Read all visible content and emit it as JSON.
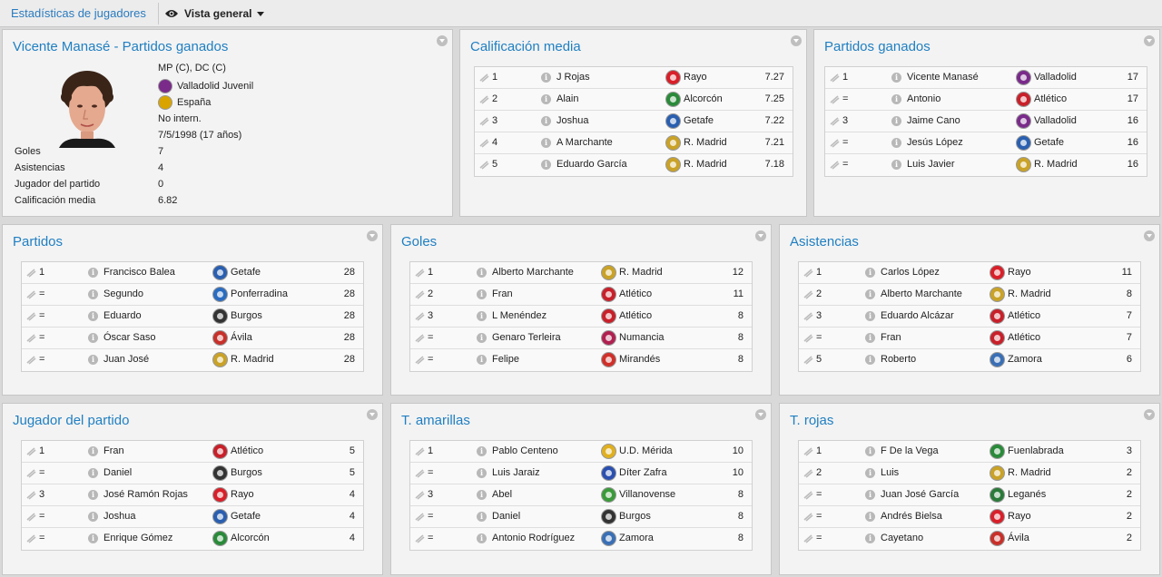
{
  "topbar": {
    "link": "Estadísticas de jugadores",
    "view_label": "Vista general"
  },
  "profile": {
    "title": "Vicente Manasé - Partidos ganados",
    "position": "MP (C), DC (C)",
    "club": "Valladolid Juvenil",
    "nation": "España",
    "intl": "No intern.",
    "dob": "7/5/1998 (17 años)",
    "stats": [
      {
        "label": "Goles",
        "value": "7"
      },
      {
        "label": "Asistencias",
        "value": "4"
      },
      {
        "label": "Jugador del partido",
        "value": "0"
      },
      {
        "label": "Calificación media",
        "value": "6.82"
      }
    ],
    "club_color": "#7a2b8a",
    "nation_color": "#d9a400"
  },
  "panels": [
    {
      "title": "Calificación media",
      "rows": [
        {
          "rank": "1",
          "name": "J Rojas",
          "club": "Rayo",
          "value": "7.27",
          "color": "#d8202a"
        },
        {
          "rank": "2",
          "name": "Alain",
          "club": "Alcorcón",
          "value": "7.25",
          "color": "#2a8a3a"
        },
        {
          "rank": "3",
          "name": "Joshua",
          "club": "Getafe",
          "value": "7.22",
          "color": "#2a5fb0"
        },
        {
          "rank": "4",
          "name": "A Marchante",
          "club": "R. Madrid",
          "value": "7.21",
          "color": "#c9a227"
        },
        {
          "rank": "5",
          "name": "Eduardo García",
          "club": "R. Madrid",
          "value": "7.18",
          "color": "#c9a227"
        }
      ]
    },
    {
      "title": "Partidos ganados",
      "rows": [
        {
          "rank": "1",
          "name": "Vicente Manasé",
          "club": "Valladolid",
          "value": "17",
          "color": "#7a2b8a"
        },
        {
          "rank": "=",
          "name": "Antonio",
          "club": "Atlético",
          "value": "17",
          "color": "#c8202a"
        },
        {
          "rank": "3",
          "name": "Jaime Cano",
          "club": "Valladolid",
          "value": "16",
          "color": "#7a2b8a"
        },
        {
          "rank": "=",
          "name": "Jesús López",
          "club": "Getafe",
          "value": "16",
          "color": "#2a5fb0"
        },
        {
          "rank": "=",
          "name": "Luis Javier",
          "club": "R. Madrid",
          "value": "16",
          "color": "#c9a227"
        }
      ]
    },
    {
      "title": "Partidos",
      "rows": [
        {
          "rank": "1",
          "name": "Francisco Balea",
          "club": "Getafe",
          "value": "28",
          "color": "#2a5fb0"
        },
        {
          "rank": "=",
          "name": "Segundo",
          "club": "Ponferradina",
          "value": "28",
          "color": "#2a6cc0"
        },
        {
          "rank": "=",
          "name": "Eduardo",
          "club": "Burgos",
          "value": "28",
          "color": "#333333"
        },
        {
          "rank": "=",
          "name": "Óscar Saso",
          "club": "Ávila",
          "value": "28",
          "color": "#c8302a"
        },
        {
          "rank": "=",
          "name": "Juan José",
          "club": "R. Madrid",
          "value": "28",
          "color": "#c9a227"
        }
      ]
    },
    {
      "title": "Goles",
      "rows": [
        {
          "rank": "1",
          "name": "Alberto Marchante",
          "club": "R. Madrid",
          "value": "12",
          "color": "#c9a227"
        },
        {
          "rank": "2",
          "name": "Fran",
          "club": "Atlético",
          "value": "11",
          "color": "#c8202a"
        },
        {
          "rank": "3",
          "name": "L Menéndez",
          "club": "Atlético",
          "value": "8",
          "color": "#c8202a"
        },
        {
          "rank": "=",
          "name": "Genaro Terleira",
          "club": "Numancia",
          "value": "8",
          "color": "#b02050"
        },
        {
          "rank": "=",
          "name": "Felipe",
          "club": "Mirandés",
          "value": "8",
          "color": "#d0302a"
        }
      ]
    },
    {
      "title": "Asistencias",
      "rows": [
        {
          "rank": "1",
          "name": "Carlos López",
          "club": "Rayo",
          "value": "11",
          "color": "#d8202a"
        },
        {
          "rank": "2",
          "name": "Alberto Marchante",
          "club": "R. Madrid",
          "value": "8",
          "color": "#c9a227"
        },
        {
          "rank": "3",
          "name": "Eduardo Alcázar",
          "club": "Atlético",
          "value": "7",
          "color": "#c8202a"
        },
        {
          "rank": "=",
          "name": "Fran",
          "club": "Atlético",
          "value": "7",
          "color": "#c8202a"
        },
        {
          "rank": "5",
          "name": "Roberto",
          "club": "Zamora",
          "value": "6",
          "color": "#3a6fb5"
        }
      ]
    },
    {
      "title": "Jugador del partido",
      "rows": [
        {
          "rank": "1",
          "name": "Fran",
          "club": "Atlético",
          "value": "5",
          "color": "#c8202a"
        },
        {
          "rank": "=",
          "name": "Daniel",
          "club": "Burgos",
          "value": "5",
          "color": "#333333"
        },
        {
          "rank": "3",
          "name": "José Ramón Rojas",
          "club": "Rayo",
          "value": "4",
          "color": "#d8202a"
        },
        {
          "rank": "=",
          "name": "Joshua",
          "club": "Getafe",
          "value": "4",
          "color": "#2a5fb0"
        },
        {
          "rank": "=",
          "name": "Enrique Gómez",
          "club": "Alcorcón",
          "value": "4",
          "color": "#2a8a3a"
        }
      ]
    },
    {
      "title": "T. amarillas",
      "rows": [
        {
          "rank": "1",
          "name": "Pablo Centeno",
          "club": "U.D. Mérida",
          "value": "10",
          "color": "#e0b020"
        },
        {
          "rank": "=",
          "name": "Luis Jaraiz",
          "club": "Díter Zafra",
          "value": "10",
          "color": "#2a4fb0"
        },
        {
          "rank": "3",
          "name": "Abel",
          "club": "Villanovense",
          "value": "8",
          "color": "#3a9a3a"
        },
        {
          "rank": "=",
          "name": "Daniel",
          "club": "Burgos",
          "value": "8",
          "color": "#333333"
        },
        {
          "rank": "=",
          "name": "Antonio Rodríguez",
          "club": "Zamora",
          "value": "8",
          "color": "#3a6fb5"
        }
      ]
    },
    {
      "title": "T. rojas",
      "rows": [
        {
          "rank": "1",
          "name": "F De la Vega",
          "club": "Fuenlabrada",
          "value": "3",
          "color": "#2a8a3a"
        },
        {
          "rank": "2",
          "name": "Luis",
          "club": "R. Madrid",
          "value": "2",
          "color": "#c9a227"
        },
        {
          "rank": "=",
          "name": "Juan José García",
          "club": "Leganés",
          "value": "2",
          "color": "#2a7a3a"
        },
        {
          "rank": "=",
          "name": "Andrés Bielsa",
          "club": "Rayo",
          "value": "2",
          "color": "#d8202a"
        },
        {
          "rank": "=",
          "name": "Cayetano",
          "club": "Ávila",
          "value": "2",
          "color": "#c8302a"
        }
      ]
    }
  ]
}
